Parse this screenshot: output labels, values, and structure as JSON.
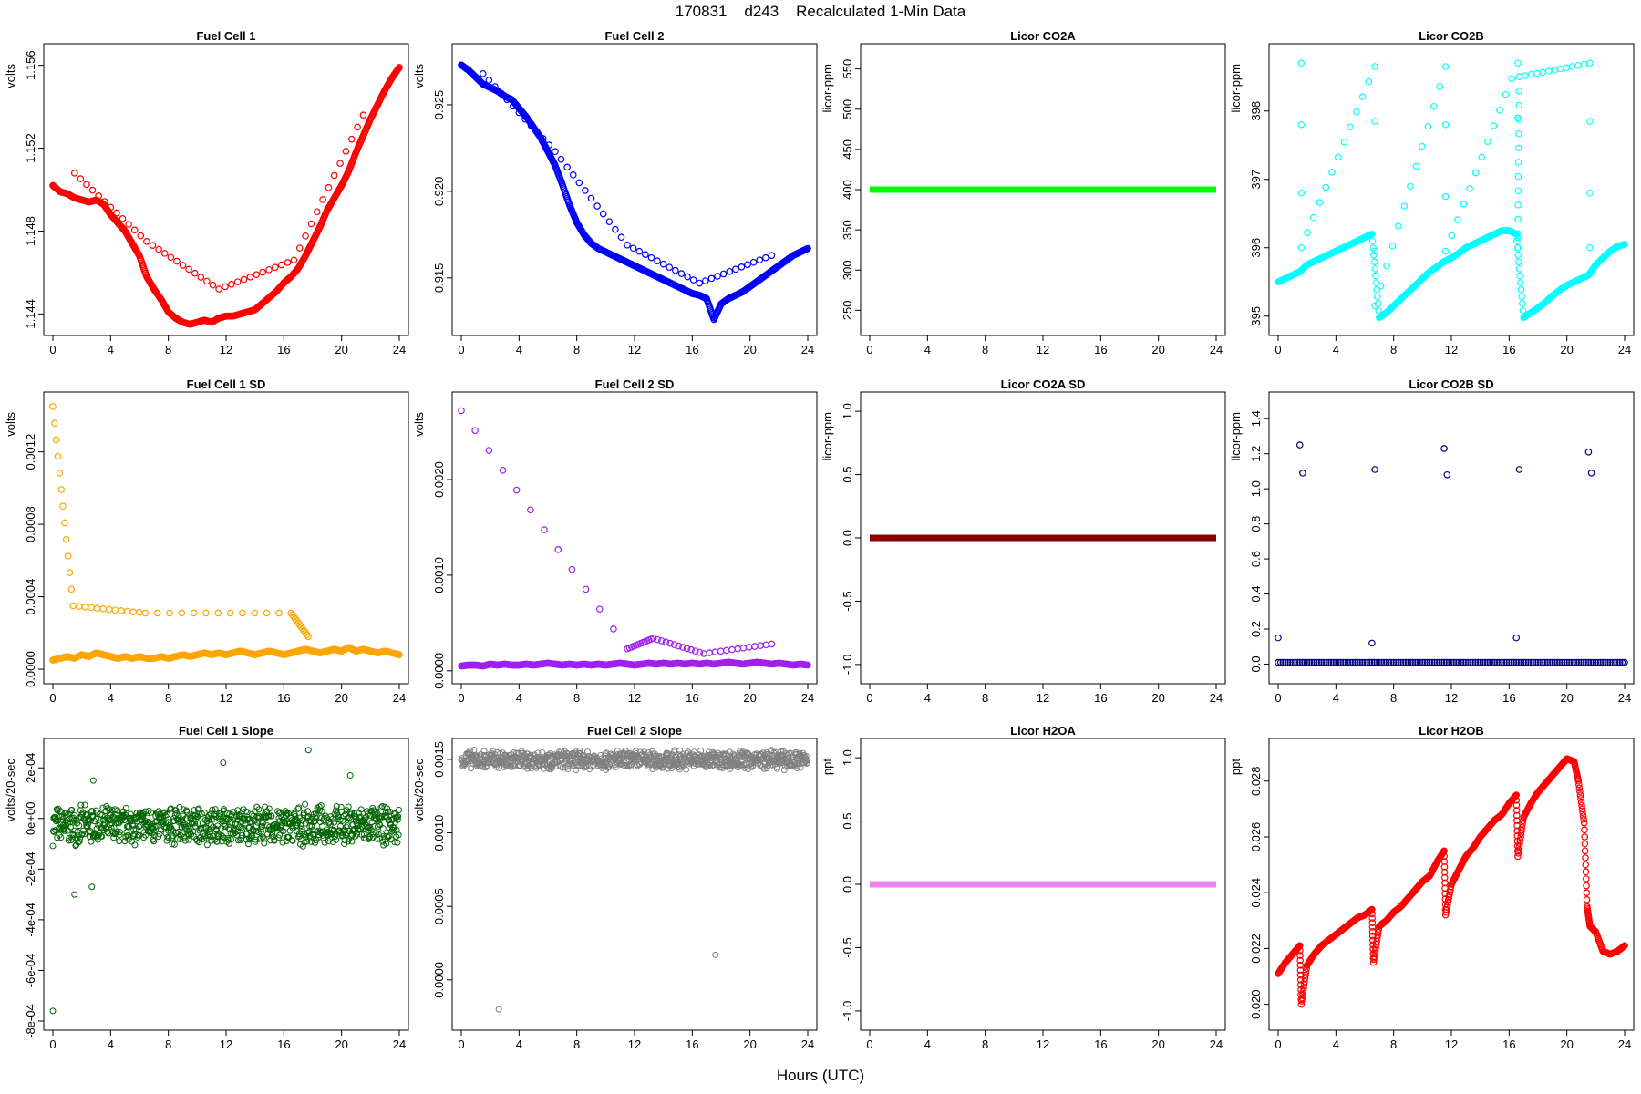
{
  "page": {
    "title": "170831    d243    Recalculated 1-Min Data",
    "xlabel": "Hours (UTC)"
  },
  "chart_data": [
    {
      "type": "scatter",
      "title": "Fuel Cell 1",
      "ylabel": "volts",
      "color": "#ff0000",
      "xlim": [
        0,
        24
      ],
      "ylim": [
        1.1434,
        1.1566
      ],
      "xticks": [
        0,
        4,
        8,
        12,
        16,
        20,
        24
      ],
      "yticks": [
        1.144,
        1.148,
        1.152,
        1.156
      ],
      "ytick_labels": [
        "1.144",
        "1.148",
        "1.152",
        "1.156"
      ],
      "x": [
        0,
        0.5,
        1,
        1.5,
        2,
        2.5,
        3,
        3.5,
        4,
        4.5,
        5,
        5.5,
        6,
        6.5,
        7,
        7.5,
        8,
        8.5,
        9,
        9.5,
        10,
        10.5,
        11,
        11.5,
        12,
        12.5,
        13,
        13.5,
        14,
        14.5,
        15,
        15.5,
        16,
        16.5,
        17,
        17.5,
        18,
        18.5,
        19,
        19.5,
        20,
        20.5,
        21,
        21.5,
        22,
        22.5,
        23,
        23.5,
        24,
        1.5,
        6.5,
        11.5,
        16.7,
        21.5
      ],
      "y": [
        1.1502,
        1.1499,
        1.1498,
        1.1496,
        1.1495,
        1.1494,
        1.1495,
        1.1493,
        1.1488,
        1.1484,
        1.148,
        1.1474,
        1.1468,
        1.1458,
        1.1452,
        1.1447,
        1.1441,
        1.1438,
        1.1436,
        1.1435,
        1.1436,
        1.1437,
        1.1436,
        1.1438,
        1.1439,
        1.1439,
        1.144,
        1.1441,
        1.1442,
        1.1445,
        1.1448,
        1.1451,
        1.1455,
        1.1458,
        1.1462,
        1.1468,
        1.1475,
        1.1482,
        1.149,
        1.1496,
        1.1502,
        1.1509,
        1.1518,
        1.1526,
        1.1534,
        1.1541,
        1.1548,
        1.1554,
        1.1559,
        1.1508,
        1.1475,
        1.1452,
        1.1466,
        1.1536
      ]
    },
    {
      "type": "scatter",
      "title": "Fuel Cell 2",
      "ylabel": "volts",
      "color": "#0000ff",
      "xlim": [
        0,
        24
      ],
      "ylim": [
        0.9122,
        0.928
      ],
      "xticks": [
        0,
        4,
        8,
        12,
        16,
        20,
        24
      ],
      "yticks": [
        0.915,
        0.92,
        0.925
      ],
      "ytick_labels": [
        "0.915",
        "0.920",
        "0.925"
      ],
      "x": [
        0,
        0.5,
        1,
        1.5,
        2,
        2.5,
        3,
        3.5,
        4,
        4.5,
        5,
        5.5,
        6,
        6.5,
        7,
        7.5,
        8,
        8.5,
        9,
        9.5,
        10,
        10.5,
        11,
        11.5,
        12,
        12.5,
        13,
        13.5,
        14,
        14.5,
        15,
        15.5,
        16,
        16.5,
        17,
        17.5,
        18,
        18.5,
        19,
        19.5,
        20,
        20.5,
        21,
        21.5,
        22,
        22.5,
        23,
        23.5,
        24,
        1.5,
        6.5,
        11.5,
        16.5,
        21.5
      ],
      "y": [
        0.9273,
        0.927,
        0.9266,
        0.9262,
        0.926,
        0.9258,
        0.9255,
        0.9253,
        0.9248,
        0.9243,
        0.9237,
        0.9231,
        0.9223,
        0.9215,
        0.9204,
        0.9192,
        0.9182,
        0.9175,
        0.917,
        0.9167,
        0.9165,
        0.9163,
        0.9161,
        0.9159,
        0.9157,
        0.9155,
        0.9153,
        0.9151,
        0.9149,
        0.9147,
        0.9145,
        0.9143,
        0.9141,
        0.914,
        0.9138,
        0.9126,
        0.9135,
        0.9138,
        0.914,
        0.9142,
        0.9145,
        0.9148,
        0.9151,
        0.9154,
        0.9157,
        0.916,
        0.9163,
        0.9165,
        0.9167,
        0.9268,
        0.9223,
        0.9169,
        0.9147,
        0.9163
      ]
    },
    {
      "type": "scatter",
      "title": "Licor CO2A",
      "ylabel": "licor-ppm",
      "color": "#00ff00",
      "xlim": [
        0,
        24
      ],
      "ylim": [
        230,
        570
      ],
      "xticks": [
        0,
        4,
        8,
        12,
        16,
        20,
        24
      ],
      "yticks": [
        250,
        300,
        350,
        400,
        450,
        500,
        550
      ],
      "ytick_labels": [
        "250",
        "300",
        "350",
        "400",
        "450",
        "500",
        "550"
      ],
      "x": [
        0,
        24
      ],
      "y": [
        400,
        400
      ],
      "line_style": "dense"
    },
    {
      "type": "scatter",
      "title": "Licor CO2B",
      "ylabel": "licor-ppm",
      "color": "#00ffff",
      "xlim": [
        0,
        24
      ],
      "ylim": [
        394.85,
        398.85
      ],
      "xticks": [
        0,
        4,
        8,
        12,
        16,
        20,
        24
      ],
      "yticks": [
        395,
        396,
        397,
        398
      ],
      "ytick_labels": [
        "395",
        "396",
        "397",
        "398"
      ],
      "x": [
        0,
        0.5,
        1,
        1.5,
        2,
        2.5,
        3,
        3.5,
        4,
        4.5,
        5,
        5.5,
        6,
        6.5,
        7,
        7.5,
        8,
        8.5,
        9,
        9.5,
        10,
        10.5,
        11,
        11.5,
        12,
        12.5,
        13,
        13.5,
        14,
        14.5,
        15,
        15.5,
        16,
        16.5,
        17,
        17.5,
        18,
        18.5,
        19,
        19.5,
        20,
        20.5,
        21,
        21.5,
        22,
        22.5,
        23,
        23.5,
        24,
        1.6,
        1.6,
        1.6,
        1.6,
        6.7,
        6.7,
        6.7,
        6.7,
        11.6,
        11.6,
        11.6,
        11.6,
        16.6,
        16.6,
        16.6,
        16.6,
        16.7,
        21.6,
        21.6,
        21.6,
        21.6
      ],
      "y": [
        395.5,
        395.55,
        395.6,
        395.65,
        395.75,
        395.8,
        395.85,
        395.9,
        395.95,
        396.0,
        396.05,
        396.1,
        396.15,
        396.2,
        394.98,
        395.05,
        395.15,
        395.25,
        395.35,
        395.45,
        395.55,
        395.65,
        395.72,
        395.8,
        395.85,
        395.92,
        396.0,
        396.05,
        396.1,
        396.15,
        396.2,
        396.25,
        396.25,
        396.2,
        394.98,
        395.05,
        395.12,
        395.2,
        395.3,
        395.38,
        395.45,
        395.5,
        395.55,
        395.6,
        395.75,
        395.85,
        395.95,
        396.02,
        396.05,
        398.7,
        397.8,
        396.8,
        396.0,
        398.65,
        397.85,
        395.95,
        395.15,
        398.65,
        397.8,
        396.75,
        395.95,
        398.7,
        397.9,
        396.15,
        396.0,
        398.5,
        398.7,
        397.85,
        396.8,
        396.0
      ]
    },
    {
      "type": "scatter",
      "title": "Fuel Cell 1 SD",
      "ylabel": "volts",
      "color": "#ffa500",
      "xlim": [
        0,
        24
      ],
      "ylim": [
        -3e-05,
        0.00148
      ],
      "xticks": [
        0,
        4,
        8,
        12,
        16,
        20,
        24
      ],
      "yticks": [
        0,
        0.0004,
        0.0008,
        0.0012
      ],
      "ytick_labels": [
        "0.0000",
        "0.0004",
        "0.0008",
        "0.0012"
      ],
      "x": [
        0,
        0.5,
        1,
        1.5,
        2,
        2.5,
        3,
        3.5,
        4,
        4.5,
        5,
        5.5,
        6,
        6.5,
        7,
        7.5,
        8,
        8.5,
        9,
        9.5,
        10,
        10.5,
        11,
        11.5,
        12,
        12.5,
        13,
        13.5,
        14,
        14.5,
        15,
        15.5,
        16,
        16.5,
        17,
        17.5,
        18,
        18.5,
        19,
        19.5,
        20,
        20.5,
        21,
        21.5,
        22,
        22.5,
        23,
        23.5,
        24,
        0,
        1.4,
        6.4,
        16.5,
        17.7
      ],
      "y": [
        5e-05,
        6e-05,
        7e-05,
        6e-05,
        8e-05,
        7e-05,
        9e-05,
        8e-05,
        7e-05,
        6e-05,
        7e-05,
        6e-05,
        7e-05,
        6e-05,
        6e-05,
        7e-05,
        6e-05,
        7e-05,
        8e-05,
        7e-05,
        8e-05,
        9e-05,
        8e-05,
        9e-05,
        8e-05,
        9e-05,
        0.0001,
        9e-05,
        8e-05,
        9e-05,
        0.0001,
        9e-05,
        8e-05,
        9e-05,
        0.0001,
        0.00011,
        0.0001,
        9e-05,
        0.0001,
        0.00011,
        0.0001,
        0.00012,
        0.0001,
        0.00011,
        0.0001,
        9e-05,
        0.0001,
        9e-05,
        8e-05,
        0.00145,
        0.00035,
        0.00031,
        0.00031,
        0.00018
      ]
    },
    {
      "type": "scatter",
      "title": "Fuel Cell 2 SD",
      "ylabel": "volts",
      "color": "#a020f0",
      "xlim": [
        0,
        24
      ],
      "ylim": [
        -4e-05,
        0.00282
      ],
      "xticks": [
        0,
        4,
        8,
        12,
        16,
        20,
        24
      ],
      "yticks": [
        0,
        0.001,
        0.002
      ],
      "ytick_labels": [
        "0.0000",
        "0.0010",
        "0.0020"
      ],
      "x": [
        0,
        0.5,
        1,
        1.5,
        2,
        2.5,
        3,
        3.5,
        4,
        4.5,
        5,
        5.5,
        6,
        6.5,
        7,
        7.5,
        8,
        8.5,
        9,
        9.5,
        10,
        10.5,
        11,
        11.5,
        12,
        12.5,
        13,
        13.5,
        14,
        14.5,
        15,
        15.5,
        16,
        16.5,
        17,
        17.5,
        18,
        18.5,
        19,
        19.5,
        20,
        20.5,
        21,
        21.5,
        22,
        22.5,
        23,
        23.5,
        24,
        0,
        11.5,
        13.3,
        16.8,
        21.5
      ],
      "y": [
        5e-05,
        6e-05,
        6e-05,
        5e-05,
        7e-05,
        6e-05,
        7e-05,
        6e-05,
        6e-05,
        7e-05,
        6e-05,
        7e-05,
        8e-05,
        7e-05,
        6e-05,
        7e-05,
        6e-05,
        7e-05,
        6e-05,
        7e-05,
        6e-05,
        7e-05,
        8e-05,
        7e-05,
        6e-05,
        7e-05,
        8e-05,
        7e-05,
        8e-05,
        7e-05,
        8e-05,
        7e-05,
        8e-05,
        7e-05,
        8e-05,
        7e-05,
        8e-05,
        9e-05,
        8e-05,
        7e-05,
        8e-05,
        9e-05,
        8e-05,
        7e-05,
        8e-05,
        7e-05,
        6e-05,
        7e-05,
        6e-05,
        0.00272,
        0.00023,
        0.00034,
        0.00018,
        0.00028
      ]
    },
    {
      "type": "scatter",
      "title": "Licor CO2A SD",
      "ylabel": "licor-ppm",
      "color": "#8b0000",
      "xlim": [
        0,
        24
      ],
      "ylim": [
        -1.08,
        1.08
      ],
      "xticks": [
        0,
        4,
        8,
        12,
        16,
        20,
        24
      ],
      "yticks": [
        -1,
        -0.5,
        0,
        0.5,
        1
      ],
      "ytick_labels": [
        "-1.0",
        "-0.5",
        "0.0",
        "0.5",
        "1.0"
      ],
      "x": [
        0,
        24
      ],
      "y": [
        0,
        0
      ],
      "line_style": "dense"
    },
    {
      "type": "scatter",
      "title": "Licor CO2B SD",
      "ylabel": "licor-ppm",
      "color": "#000080",
      "xlim": [
        0,
        24
      ],
      "ylim": [
        -0.06,
        1.5
      ],
      "xticks": [
        0,
        4,
        8,
        12,
        16,
        20,
        24
      ],
      "yticks": [
        0,
        0.2,
        0.4,
        0.6,
        0.8,
        1,
        1.2,
        1.4
      ],
      "ytick_labels": [
        "0.0",
        "0.2",
        "0.4",
        "0.6",
        "0.8",
        "1.0",
        "1.2",
        "1.4"
      ],
      "x": [
        0,
        2,
        4,
        6,
        8,
        10,
        12,
        14,
        16,
        18,
        20,
        22,
        24,
        0,
        1.5,
        1.7,
        6.5,
        6.7,
        11.5,
        11.7,
        16.5,
        16.7,
        21.5,
        21.7
      ],
      "y": [
        0.01,
        0.01,
        0.01,
        0.01,
        0.01,
        0.01,
        0.01,
        0.01,
        0.01,
        0.01,
        0.01,
        0.01,
        0.01,
        0.15,
        1.25,
        1.09,
        0.12,
        1.11,
        1.23,
        1.08,
        0.15,
        1.11,
        1.21,
        1.09
      ],
      "line_style": "dense-first-13"
    },
    {
      "type": "scatter",
      "title": "Fuel Cell 1 Slope",
      "ylabel": "volts/20-sec",
      "color": "#006400",
      "xlim": [
        0,
        24
      ],
      "ylim": [
        -0.0008,
        0.00028
      ],
      "xticks": [
        0,
        4,
        8,
        12,
        16,
        20,
        24
      ],
      "yticks": [
        -0.0008,
        -0.0006,
        -0.0004,
        -0.0002,
        0,
        0.0002
      ],
      "ytick_labels": [
        "-8e-04",
        "-6e-04",
        "-4e-04",
        "-2e-04",
        "0e+00",
        "2e-04"
      ],
      "x": [
        0,
        1.5,
        2.7,
        2.8,
        11.8,
        17.7,
        20.6,
        0
      ],
      "y": [
        0,
        -0.0003,
        -0.00027,
        0.00015,
        0.00022,
        0.00027,
        0.00017,
        -0.00076
      ],
      "spread": 7e-05
    },
    {
      "type": "scatter",
      "title": "Fuel Cell 2 Slope",
      "ylabel": "volts/20-sec",
      "color": "#808080",
      "xlim": [
        0,
        24
      ],
      "ylim": [
        -0.00028,
        0.00158
      ],
      "xticks": [
        0,
        4,
        8,
        12,
        16,
        20,
        24
      ],
      "yticks": [
        0,
        0.0005,
        0.001,
        0.0015
      ],
      "ytick_labels": [
        "0.0000",
        "0.0005",
        "0.0010",
        "0.0015"
      ],
      "x": [
        0,
        2.6,
        17.6
      ],
      "y": [
        0.00152,
        -0.0002,
        0.00017
      ],
      "spread": 6e-05
    },
    {
      "type": "scatter",
      "title": "Licor H2OA",
      "ylabel": "ppt",
      "color": "#ee82ee",
      "xlim": [
        0,
        24
      ],
      "ylim": [
        -1.08,
        1.08
      ],
      "xticks": [
        0,
        4,
        8,
        12,
        16,
        20,
        24
      ],
      "yticks": [
        -1,
        -0.5,
        0,
        0.5,
        1
      ],
      "ytick_labels": [
        "-1.0",
        "-0.5",
        "0.0",
        "0.5",
        "1.0"
      ],
      "x": [
        0,
        24
      ],
      "y": [
        0,
        0
      ],
      "line_style": "dense"
    },
    {
      "type": "scatter",
      "title": "Licor H2OB",
      "ylabel": "ppt",
      "color": "#ff0000",
      "xlim": [
        0,
        24
      ],
      "ylim": [
        0.0194,
        0.0292
      ],
      "xticks": [
        0,
        4,
        8,
        12,
        16,
        20,
        24
      ],
      "yticks": [
        0.02,
        0.022,
        0.024,
        0.026,
        0.028
      ],
      "ytick_labels": [
        "0.020",
        "0.022",
        "0.024",
        "0.026",
        "0.028"
      ],
      "x": [
        0,
        0.5,
        1,
        1.5,
        1.6,
        2,
        2.5,
        3,
        3.5,
        4,
        4.5,
        5,
        5.5,
        6,
        6.5,
        6.6,
        7,
        7.5,
        8,
        8.5,
        9,
        9.5,
        10,
        10.5,
        11,
        11.5,
        11.6,
        12,
        12.5,
        13,
        13.5,
        14,
        14.5,
        15,
        15.5,
        16,
        16.5,
        16.6,
        17,
        17.5,
        18,
        18.5,
        19,
        19.5,
        20,
        20.5,
        20.8,
        21.2,
        21.4,
        21.6,
        22,
        22.5,
        23,
        23.5,
        24
      ],
      "y": [
        0.0211,
        0.0215,
        0.0218,
        0.0221,
        0.02,
        0.0214,
        0.0218,
        0.0221,
        0.0223,
        0.0225,
        0.0227,
        0.0229,
        0.0231,
        0.0232,
        0.0234,
        0.0215,
        0.0228,
        0.023,
        0.0233,
        0.0235,
        0.0238,
        0.0241,
        0.0244,
        0.0246,
        0.0251,
        0.0255,
        0.0232,
        0.0243,
        0.0248,
        0.0253,
        0.0256,
        0.026,
        0.0263,
        0.0266,
        0.0268,
        0.0272,
        0.0275,
        0.0253,
        0.0267,
        0.0272,
        0.0276,
        0.0279,
        0.0282,
        0.0285,
        0.0288,
        0.0287,
        0.028,
        0.0265,
        0.0235,
        0.0228,
        0.0226,
        0.0219,
        0.0218,
        0.0219,
        0.0221
      ]
    }
  ]
}
